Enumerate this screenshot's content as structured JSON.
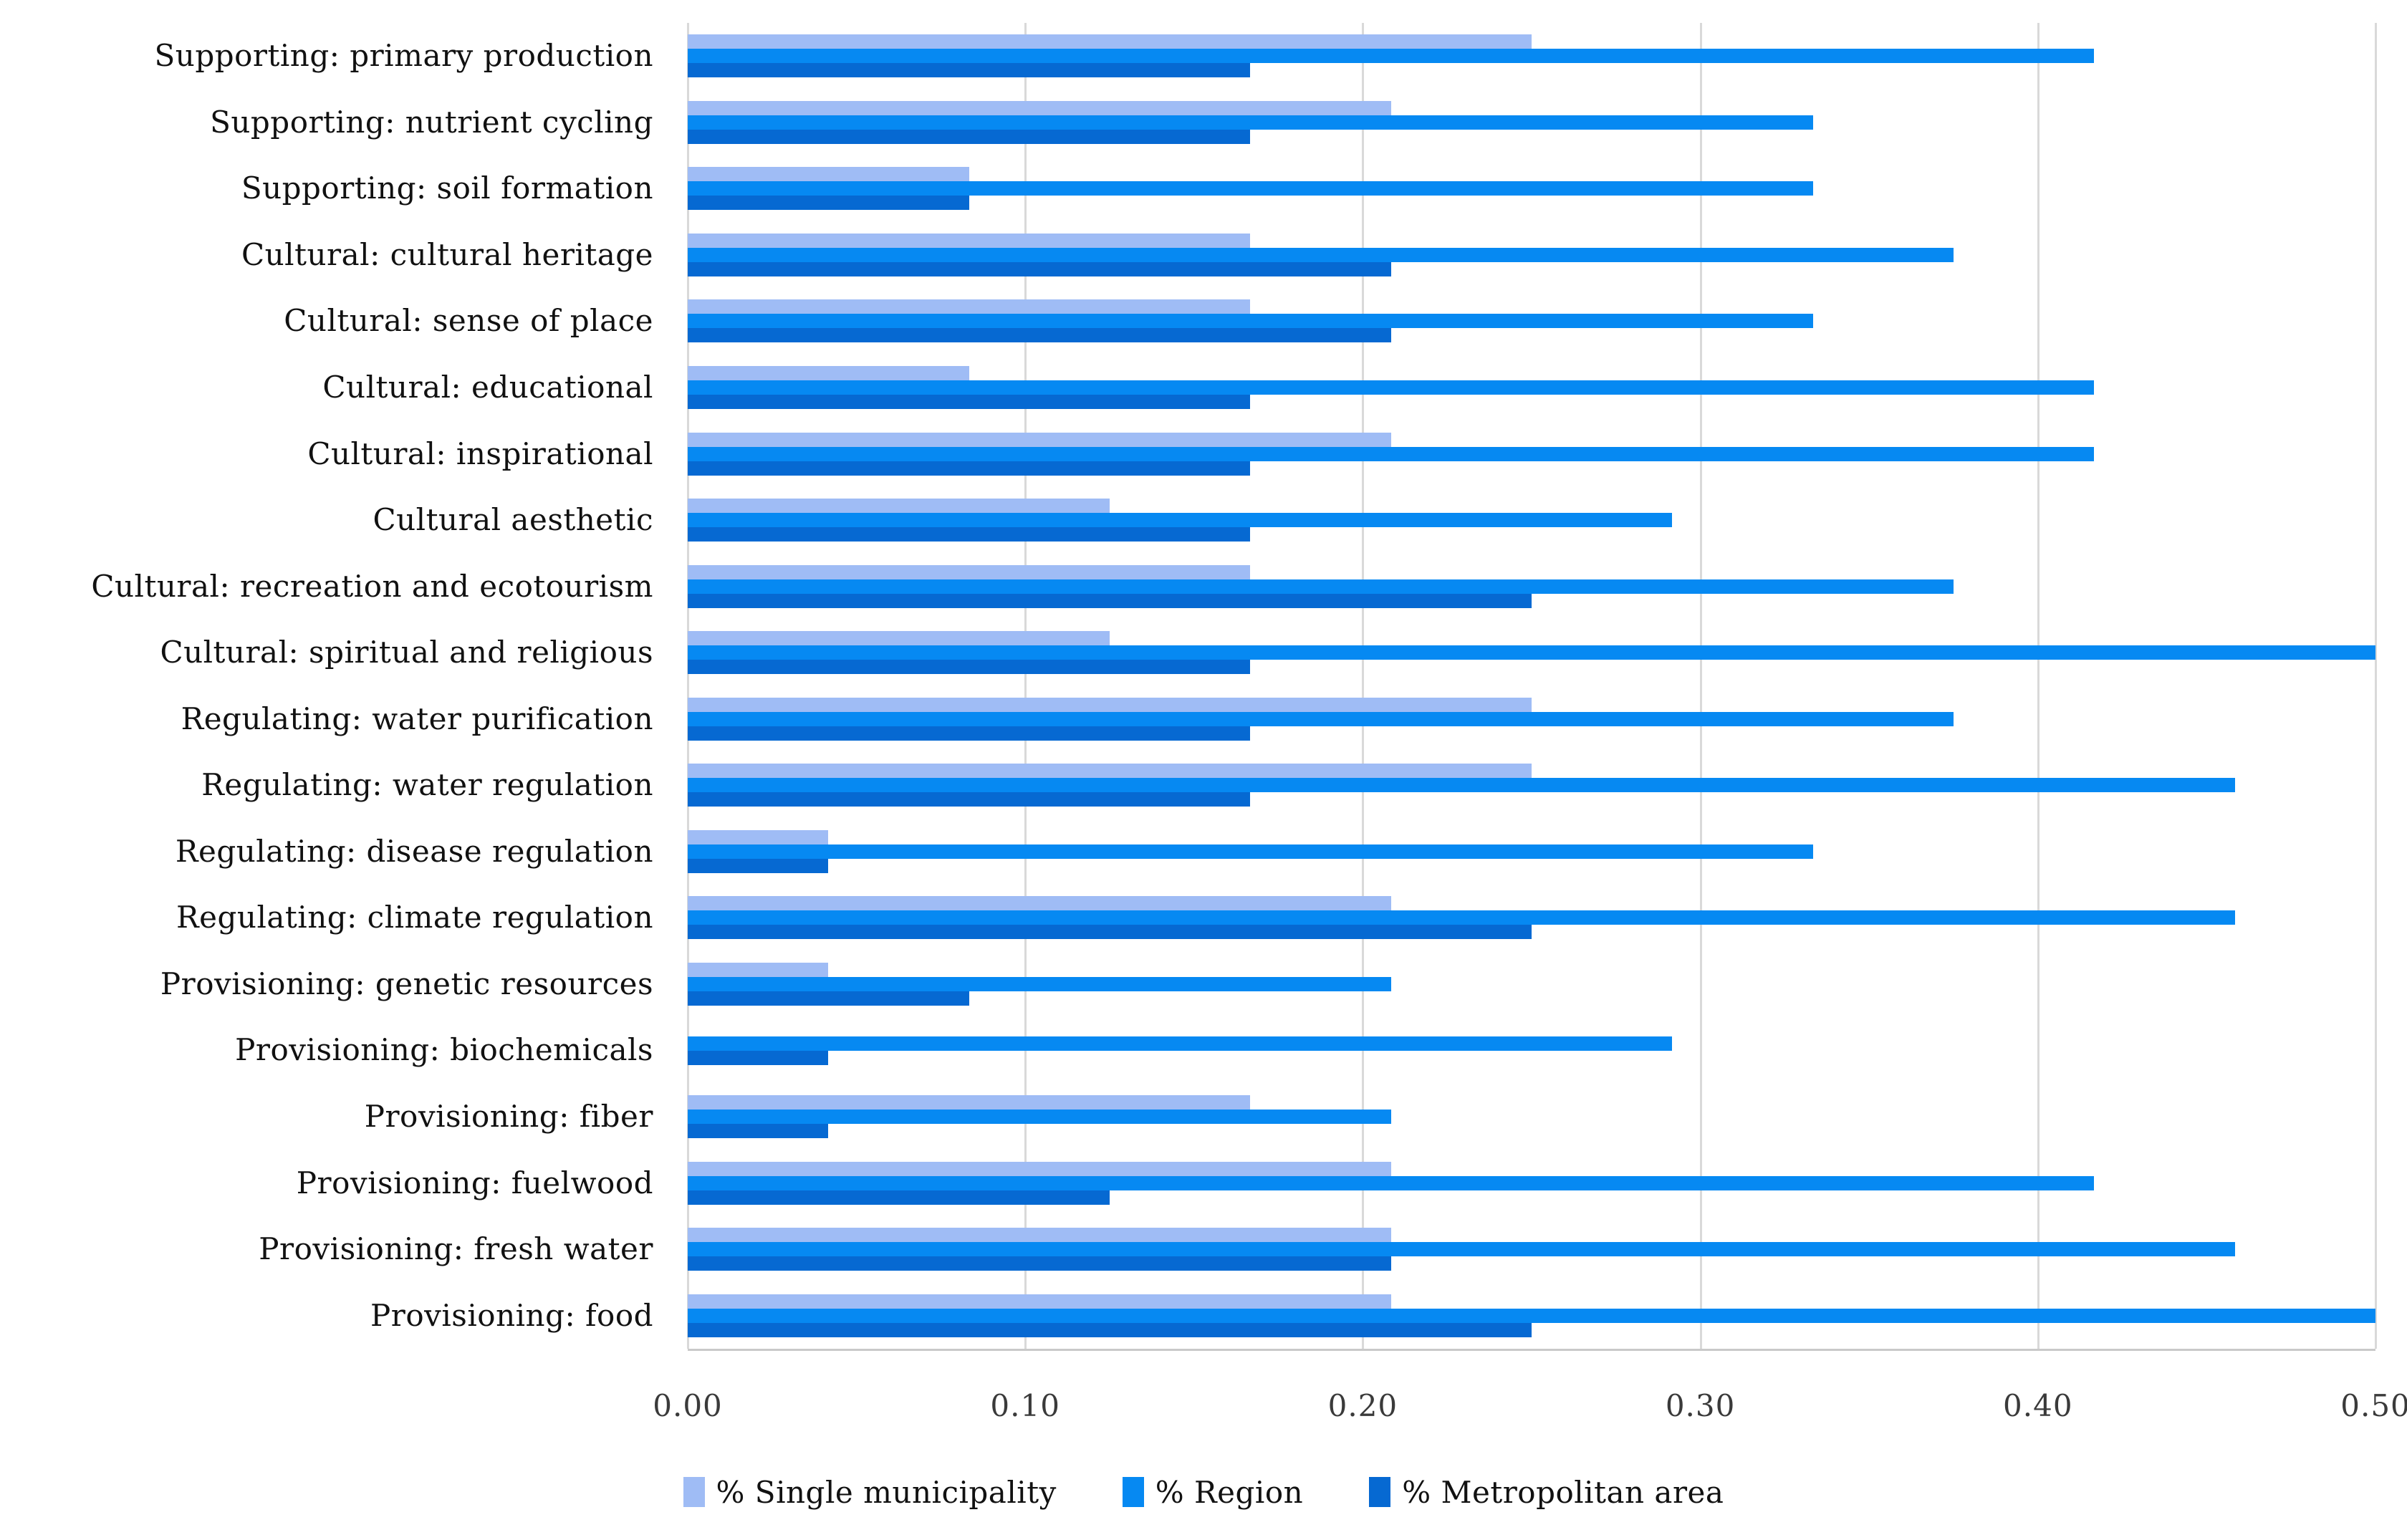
{
  "chart_data": {
    "type": "bar",
    "orientation": "horizontal",
    "title": "",
    "xlabel": "",
    "ylabel": "",
    "xlim": [
      0,
      0.5
    ],
    "x_ticks": [
      "0.00",
      "0.10",
      "0.20",
      "0.30",
      "0.40",
      "0.50"
    ],
    "grid": "vertical",
    "legend_position": "bottom",
    "categories": [
      "Supporting: primary production",
      "Supporting: nutrient cycling",
      "Supporting: soil formation",
      "Cultural: cultural heritage",
      "Cultural: sense of place",
      "Cultural: educational",
      "Cultural: inspirational",
      "Cultural aesthetic",
      "Cultural: recreation and ecotourism",
      "Cultural: spiritual and religious",
      "Regulating: water purification",
      "Regulating: water regulation",
      "Regulating: disease regulation",
      "Regulating: climate regulation",
      "Provisioning: genetic resources",
      "Provisioning: biochemicals",
      "Provisioning: fiber",
      "Provisioning: fuelwood",
      "Provisioning: fresh water",
      "Provisioning: food"
    ],
    "series": [
      {
        "name": "% Single municipality",
        "color": "#9FBCF5",
        "values": [
          0.25,
          0.2083,
          0.0833,
          0.1667,
          0.1667,
          0.0833,
          0.2083,
          0.125,
          0.1667,
          0.125,
          0.25,
          0.25,
          0.0417,
          0.2083,
          0.0417,
          0,
          0.1667,
          0.2083,
          0.2083,
          0.2083
        ]
      },
      {
        "name": "% Region",
        "color": "#0689F2",
        "values": [
          0.4167,
          0.3333,
          0.3333,
          0.375,
          0.3333,
          0.4167,
          0.4167,
          0.2917,
          0.375,
          0.5,
          0.375,
          0.4583,
          0.3333,
          0.4583,
          0.2083,
          0.2917,
          0.2083,
          0.4167,
          0.4583,
          0.5
        ]
      },
      {
        "name": "% Metropolitan area",
        "color": "#0669D2",
        "values": [
          0.1667,
          0.1667,
          0.0833,
          0.2083,
          0.2083,
          0.1667,
          0.1667,
          0.1667,
          0.25,
          0.1667,
          0.1667,
          0.1667,
          0.0417,
          0.25,
          0.0833,
          0.0417,
          0.0417,
          0.125,
          0.2083,
          0.25
        ]
      }
    ],
    "colors": {
      "gridline": "#d9d9d9",
      "axis_line": "#c9c9c9",
      "text": "#111111"
    }
  }
}
